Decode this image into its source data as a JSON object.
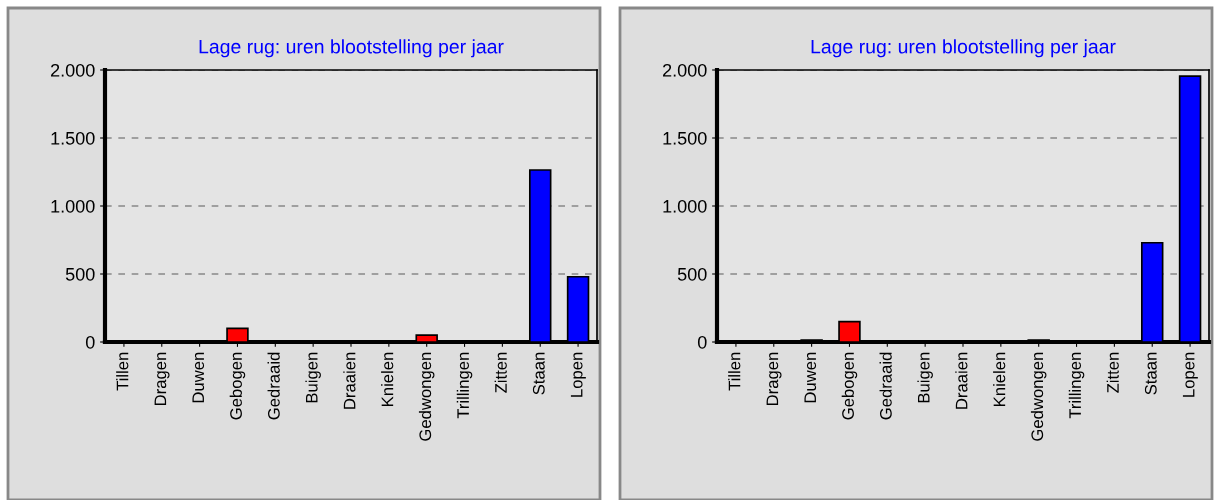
{
  "chart_data": [
    {
      "type": "bar",
      "title": "Lage rug: uren blootstelling per jaar",
      "categories": [
        "Tillen",
        "Dragen",
        "Duwen",
        "Gebogen",
        "Gedraaid",
        "Buigen",
        "Draaien",
        "Knielen",
        "Gedwongen",
        "Trillingen",
        "Zitten",
        "Staan",
        "Lopen"
      ],
      "values": [
        0,
        0,
        0,
        100,
        0,
        0,
        0,
        0,
        50,
        0,
        0,
        1265,
        480
      ],
      "colors": [
        "#000000",
        "#000000",
        "#000000",
        "#ff0000",
        "#000000",
        "#000000",
        "#000000",
        "#000000",
        "#ff0000",
        "#000000",
        "#000000",
        "#0000ff",
        "#0000ff"
      ],
      "ylim": [
        0,
        2000
      ],
      "yticks": [
        {
          "value": 0,
          "label": "0"
        },
        {
          "value": 500,
          "label": "500"
        },
        {
          "value": 1000,
          "label": "1.000"
        },
        {
          "value": 1500,
          "label": "1.500"
        },
        {
          "value": 2000,
          "label": "2.000"
        }
      ],
      "grid": "y"
    },
    {
      "type": "bar",
      "title": "Lage rug: uren blootstelling per jaar",
      "categories": [
        "Tillen",
        "Dragen",
        "Duwen",
        "Gebogen",
        "Gedraaid",
        "Buigen",
        "Draaien",
        "Knielen",
        "Gedwongen",
        "Trillingen",
        "Zitten",
        "Staan",
        "Lopen"
      ],
      "values": [
        0,
        0,
        15,
        150,
        0,
        0,
        0,
        0,
        15,
        0,
        0,
        730,
        1955
      ],
      "colors": [
        "#000000",
        "#000000",
        "#000000",
        "#ff0000",
        "#000000",
        "#000000",
        "#000000",
        "#000000",
        "#000000",
        "#000000",
        "#000000",
        "#0000ff",
        "#0000ff"
      ],
      "ylim": [
        0,
        2000
      ],
      "yticks": [
        {
          "value": 0,
          "label": "0"
        },
        {
          "value": 500,
          "label": "500"
        },
        {
          "value": 1000,
          "label": "1.000"
        },
        {
          "value": 1500,
          "label": "1.500"
        },
        {
          "value": 2000,
          "label": "2.000"
        }
      ],
      "grid": "y"
    }
  ]
}
